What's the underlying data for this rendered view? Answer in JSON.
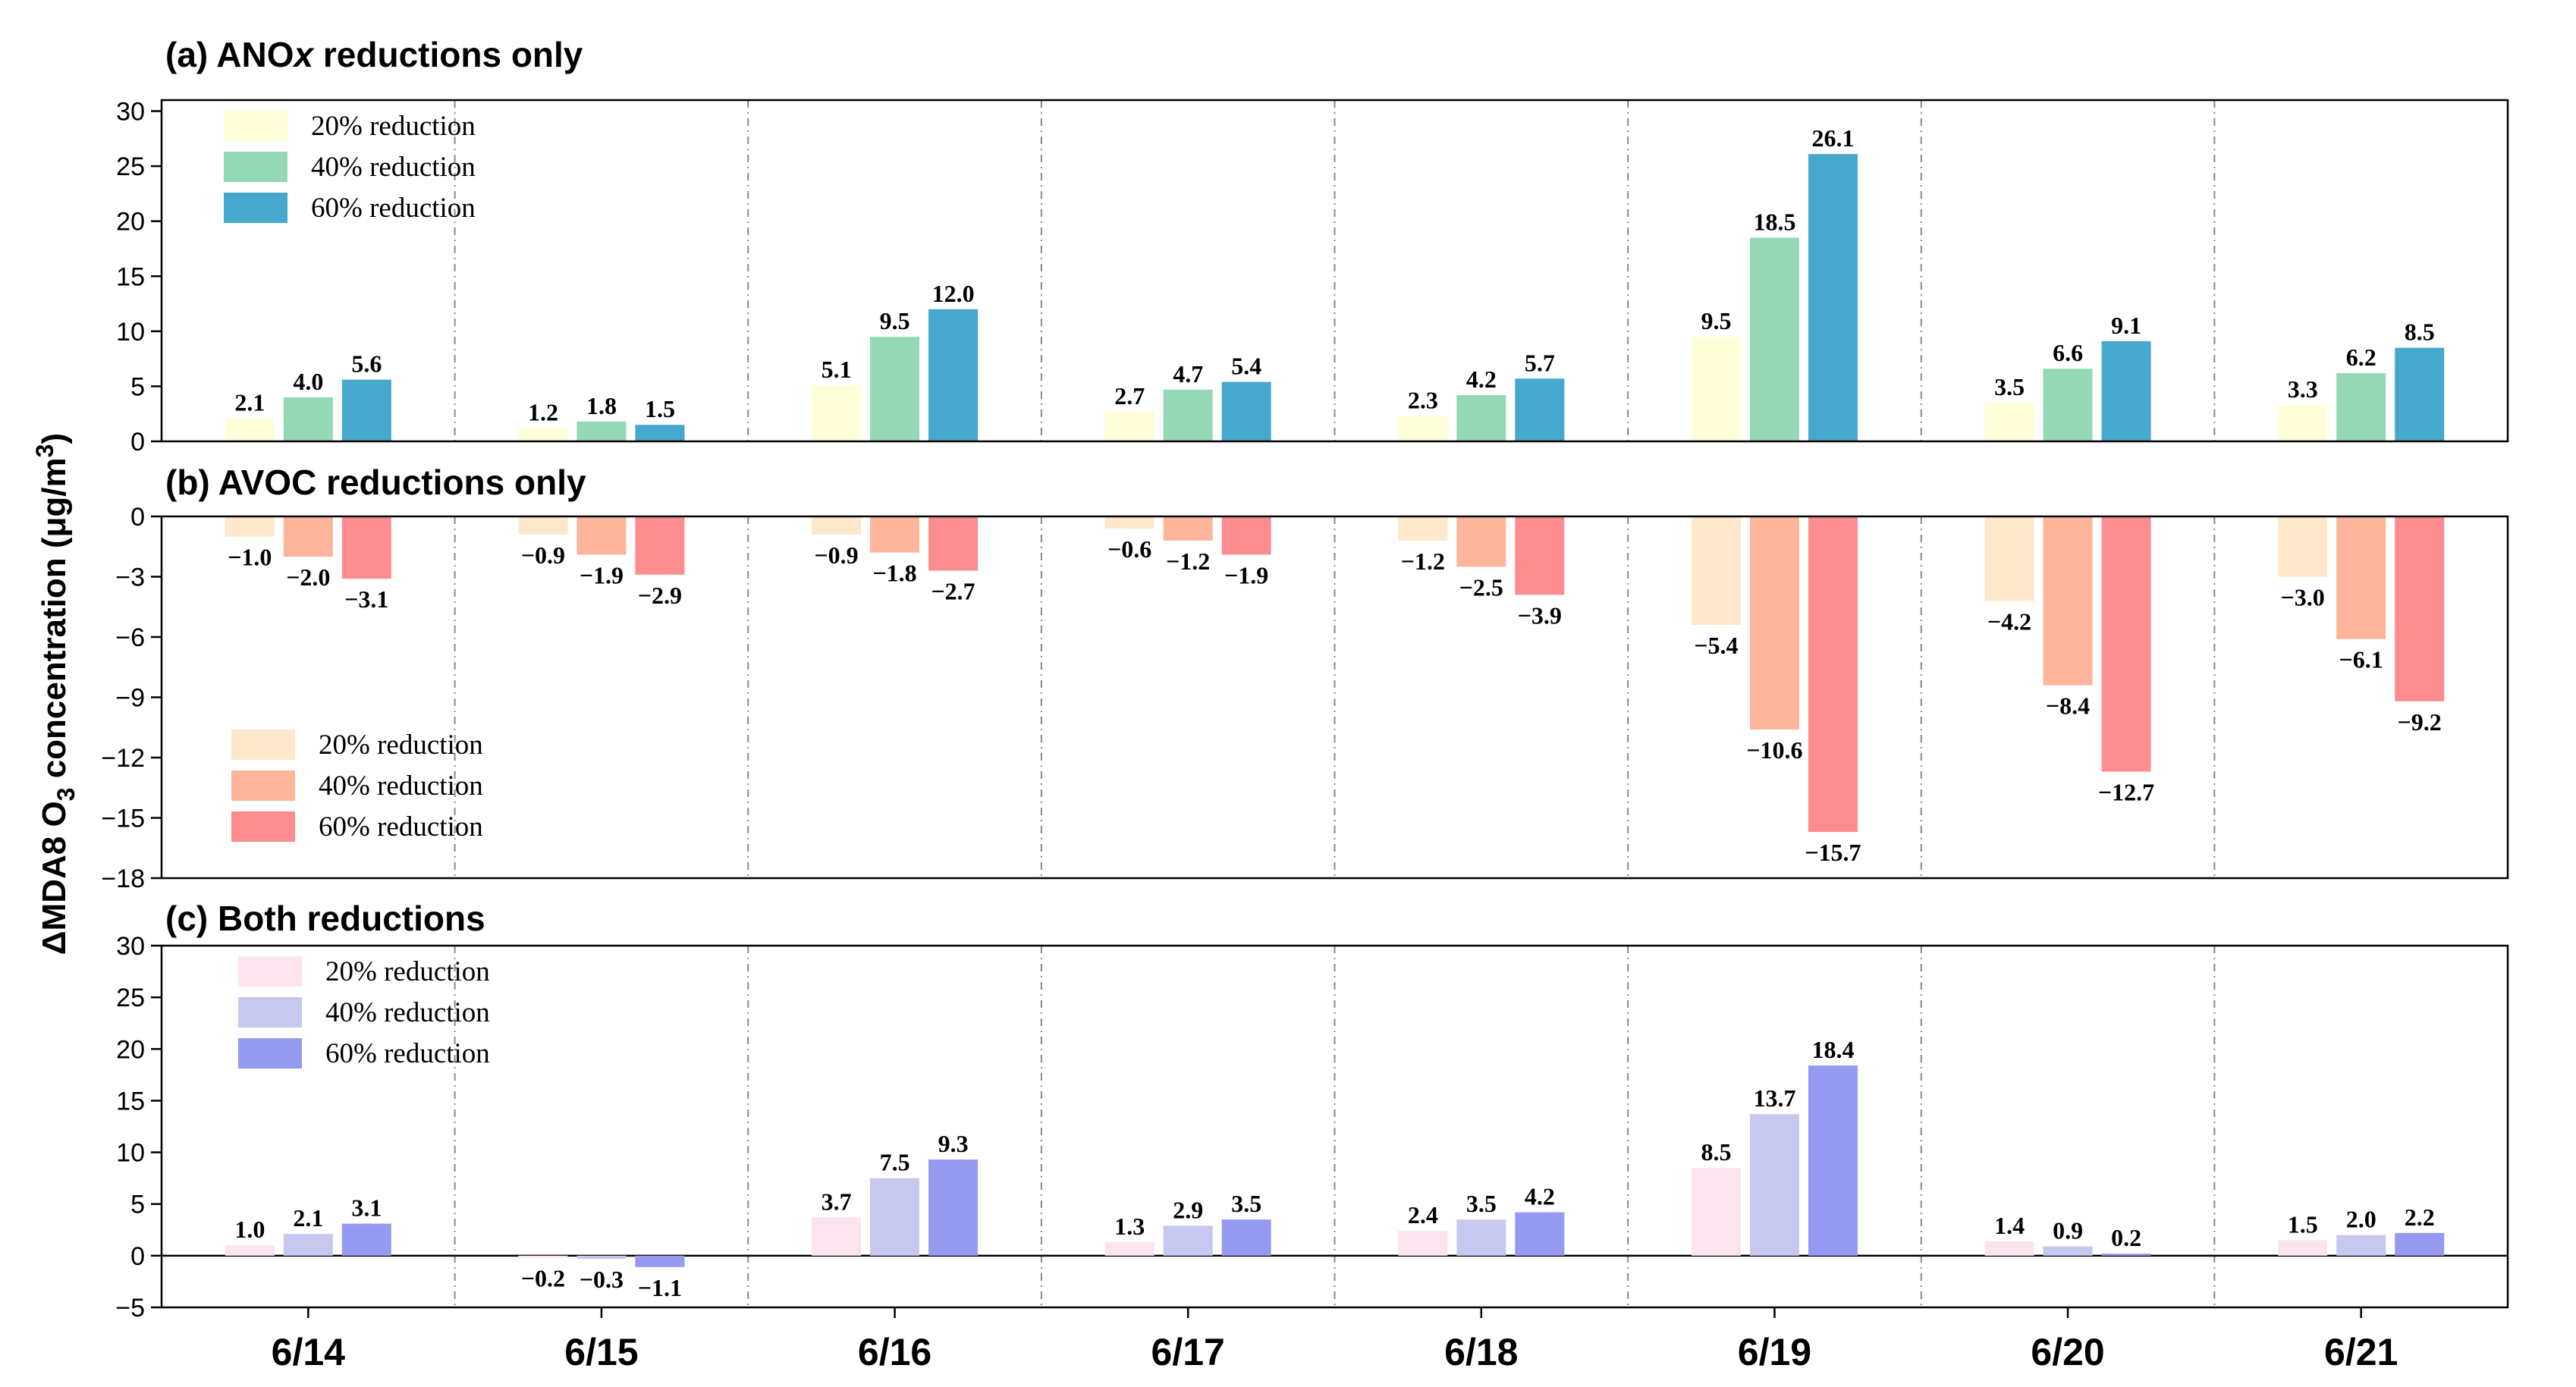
{
  "y_axis_label": "ΔMDA8 O",
  "y_axis_label_sub": "3",
  "y_axis_label_rest": " concentration (μg/m",
  "y_axis_label_sup": "3",
  "y_axis_label_end": ")",
  "chart_data": [
    {
      "type": "bar",
      "title_prefix": "(a) ANO",
      "title_italic": "x",
      "title_suffix": " reductions only",
      "categories": [
        "6/14",
        "6/15",
        "6/16",
        "6/17",
        "6/18",
        "6/19",
        "6/20",
        "6/21"
      ],
      "ylim": [
        0,
        31
      ],
      "yticks": [
        0,
        5,
        10,
        15,
        20,
        25,
        30
      ],
      "legend_position": "top-left",
      "series": [
        {
          "name": "20%  reduction",
          "color": "#fefed8",
          "values": [
            2.1,
            1.2,
            5.1,
            2.7,
            2.3,
            9.5,
            3.5,
            3.3
          ],
          "labels": [
            "2.1",
            "1.2",
            "5.1",
            "2.7",
            "2.3",
            "9.5",
            "3.5",
            "3.3"
          ]
        },
        {
          "name": "40%  reduction",
          "color": "#94d8b6",
          "values": [
            4.0,
            1.8,
            9.5,
            4.7,
            4.2,
            18.5,
            6.6,
            6.2
          ],
          "labels": [
            "4.0",
            "1.8",
            "9.5",
            "4.7",
            "4.2",
            "18.5",
            "6.6",
            "6.2"
          ]
        },
        {
          "name": "60%  reduction",
          "color": "#45a8cc",
          "values": [
            5.6,
            1.5,
            12.0,
            5.4,
            5.7,
            26.1,
            9.1,
            8.5
          ],
          "labels": [
            "5.6",
            "1.5",
            "12.0",
            "5.4",
            "5.7",
            "26.1",
            "9.1",
            "8.5"
          ]
        }
      ]
    },
    {
      "type": "bar",
      "title_prefix": "(b) AVOC reductions only",
      "title_italic": "",
      "title_suffix": "",
      "categories": [
        "6/14",
        "6/15",
        "6/16",
        "6/17",
        "6/18",
        "6/19",
        "6/20",
        "6/21"
      ],
      "ylim": [
        -18,
        0
      ],
      "yticks": [
        0,
        -3,
        -6,
        -9,
        -12,
        -15,
        -18
      ],
      "legend_position": "bottom-left",
      "series": [
        {
          "name": "20% reduction",
          "color": "#fee8cc",
          "values": [
            -1.0,
            -0.9,
            -0.9,
            -0.6,
            -1.2,
            -5.4,
            -4.2,
            -3.0
          ],
          "labels": [
            "−1.0",
            "−0.9",
            "−0.9",
            "−0.6",
            "−1.2",
            "−5.4",
            "−4.2",
            "−3.0"
          ]
        },
        {
          "name": "40% reduction",
          "color": "#fdb59c",
          "values": [
            -2.0,
            -1.9,
            -1.8,
            -1.2,
            -2.5,
            -10.6,
            -8.4,
            -6.1
          ],
          "labels": [
            "−2.0",
            "−1.9",
            "−1.8",
            "−1.2",
            "−2.5",
            "−10.6",
            "−8.4",
            "−6.1"
          ]
        },
        {
          "name": "60% reduction",
          "color": "#fd8c8e",
          "values": [
            -3.1,
            -2.9,
            -2.7,
            -1.9,
            -3.9,
            -15.7,
            -12.7,
            -9.2
          ],
          "labels": [
            "−3.1",
            "−2.9",
            "−2.7",
            "−1.9",
            "−3.9",
            "−15.7",
            "−12.7",
            "−9.2"
          ]
        }
      ]
    },
    {
      "type": "bar",
      "title_prefix": "(c) Both reductions",
      "title_italic": "",
      "title_suffix": "",
      "categories": [
        "6/14",
        "6/15",
        "6/16",
        "6/17",
        "6/18",
        "6/19",
        "6/20",
        "6/21"
      ],
      "ylim": [
        -5,
        30
      ],
      "yticks": [
        30,
        25,
        20,
        15,
        10,
        5,
        0,
        -5
      ],
      "legend_position": "top-left",
      "series": [
        {
          "name": "20% reduction",
          "color": "#fce4ee",
          "values": [
            1.0,
            -0.2,
            3.7,
            1.3,
            2.4,
            8.5,
            1.4,
            1.5
          ],
          "labels": [
            "1.0",
            "−0.2",
            "3.7",
            "1.3",
            "2.4",
            "8.5",
            "1.4",
            "1.5"
          ]
        },
        {
          "name": "40% reduction",
          "color": "#c7c8f0",
          "values": [
            2.1,
            -0.3,
            7.5,
            2.9,
            3.5,
            13.7,
            0.9,
            2.0
          ],
          "labels": [
            "2.1",
            "−0.3",
            "7.5",
            "2.9",
            "3.5",
            "13.7",
            "0.9",
            "2.0"
          ]
        },
        {
          "name": "60% reduction",
          "color": "#959af0",
          "values": [
            3.1,
            -1.1,
            9.3,
            3.5,
            4.2,
            18.4,
            0.2,
            2.2
          ],
          "labels": [
            "3.1",
            "−1.1",
            "9.3",
            "3.5",
            "4.2",
            "18.4",
            "0.2",
            "2.2"
          ]
        }
      ]
    }
  ]
}
